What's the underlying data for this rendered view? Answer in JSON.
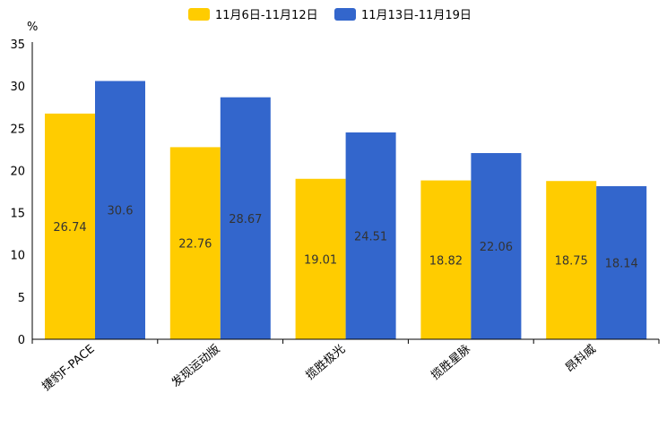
{
  "chart_data": {
    "type": "bar",
    "title": "",
    "xlabel": "",
    "ylabel": "%",
    "ylim": [
      0,
      35
    ],
    "yticks": [
      0,
      5,
      10,
      15,
      20,
      25,
      30,
      35
    ],
    "grid": false,
    "legend_position": "top-center",
    "categories": [
      "捷豹F-PACE",
      "发现运动版",
      "揽胜极光",
      "揽胜星脉",
      "昂科威"
    ],
    "series": [
      {
        "name": "11月6日-11月12日",
        "color": "#FFCC00",
        "values": [
          26.74,
          22.76,
          19.01,
          18.82,
          18.75
        ]
      },
      {
        "name": "11月13日-11月19日",
        "color": "#3366CC",
        "values": [
          30.6,
          28.67,
          24.51,
          22.06,
          18.14
        ]
      }
    ],
    "data_labels": [
      [
        "26.74",
        "22.76",
        "19.01",
        "18.82",
        "18.75"
      ],
      [
        "30.6",
        "28.67",
        "24.51",
        "22.06",
        "18.14"
      ]
    ]
  }
}
